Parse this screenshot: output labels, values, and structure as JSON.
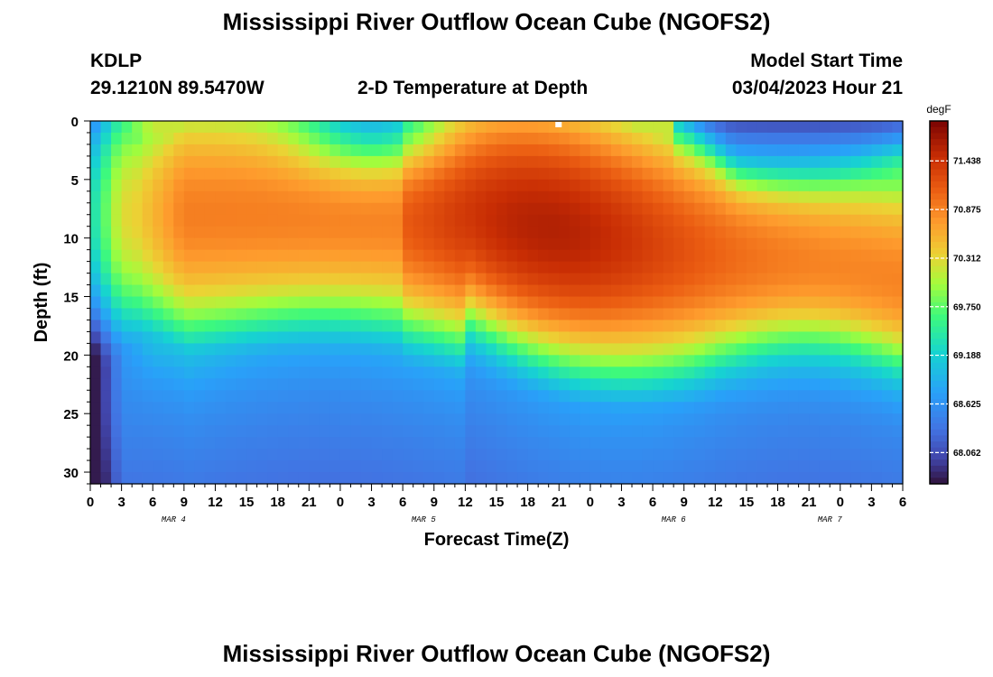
{
  "page": {
    "title_top": "Mississippi River Outflow Ocean Cube (NGOFS2)",
    "title_bottom": "Mississippi River Outflow Ocean Cube (NGOFS2)",
    "station_id": "KDLP",
    "station_coords": "29.1210N  89.5470W",
    "plot_title": "2-D Temperature at Depth",
    "model_start_label": "Model Start Time",
    "model_start_value": "03/04/2023 Hour 21"
  },
  "chart_data": {
    "type": "heatmap",
    "title": "2-D Temperature at Depth",
    "xlabel": "Forecast Time(Z)",
    "ylabel": "Depth (ft)",
    "x_tick_labels": [
      "0",
      "3",
      "6",
      "9",
      "12",
      "15",
      "18",
      "21",
      "0",
      "3",
      "6",
      "9",
      "12",
      "15",
      "18",
      "21",
      "0",
      "3",
      "6",
      "9",
      "12",
      "15",
      "18",
      "21",
      "0",
      "3",
      "6"
    ],
    "date_labels": [
      {
        "label": "MAR 4",
        "hour": 8
      },
      {
        "label": "MAR 5",
        "hour": 32
      },
      {
        "label": "MAR 6",
        "hour": 56
      },
      {
        "label": "MAR 7",
        "hour": 71
      }
    ],
    "x_hours_range": [
      0,
      78
    ],
    "y_ticks": [
      0,
      5,
      10,
      15,
      20,
      25,
      30
    ],
    "ylim": [
      0,
      31
    ],
    "colorbar": {
      "unit": "degF",
      "range": [
        67.7,
        71.9
      ],
      "ticks": [
        71.438,
        70.875,
        70.312,
        69.75,
        69.188,
        68.625,
        68.062
      ],
      "tick_labels": [
        "71.438",
        "70.875",
        "70.312",
        "69.750",
        "69.188",
        "68.625",
        "68.062"
      ]
    },
    "summary": {
      "min_temp_approx": 67.9,
      "max_temp_approx": 71.8,
      "warm_core_depth_ft": [
        0,
        22
      ],
      "cold_surface_layer_hours": [
        59,
        78
      ]
    }
  }
}
